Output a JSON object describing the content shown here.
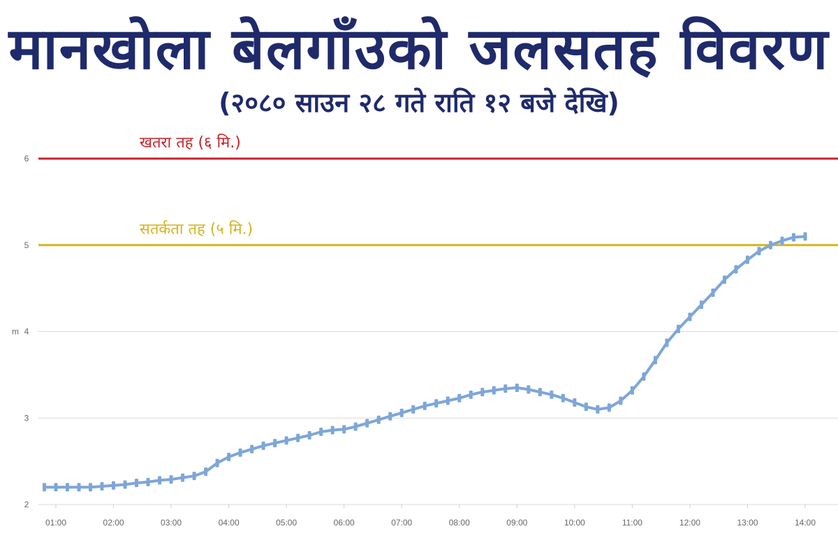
{
  "title": "मानखोला बेलगाँउको जलसतह विवरण",
  "subtitle": "(२०८० साउन २८ गते राति १२ बजे देखि)",
  "colors": {
    "title": "#1f2a6b",
    "danger": "#c8232c",
    "warning": "#d4b51f",
    "series": "#7ea6d8",
    "grid": "#d9d9d9"
  },
  "chart_data": {
    "type": "line",
    "ylabel": "m",
    "ylim": [
      2,
      6
    ],
    "yticks": [
      2,
      3,
      4,
      5,
      6
    ],
    "xticks": [
      "01:00",
      "02:00",
      "03:00",
      "04:00",
      "05:00",
      "06:00",
      "07:00",
      "08:00",
      "09:00",
      "10:00",
      "11:00",
      "12:00",
      "13:00",
      "14:00"
    ],
    "grid": true,
    "thresholds": [
      {
        "label": "खतरा तह (६ मि.)",
        "value": 6,
        "color": "#c8232c"
      },
      {
        "label": "सतर्कता तह (५ मि.)",
        "value": 5,
        "color": "#d4b51f"
      }
    ],
    "series": [
      {
        "x": [
          0.8,
          1.0,
          1.2,
          1.4,
          1.6,
          1.8,
          2.0,
          2.2,
          2.4,
          2.6,
          2.8,
          3.0,
          3.2,
          3.4,
          3.6,
          3.8,
          4.0,
          4.2,
          4.4,
          4.6,
          4.8,
          5.0,
          5.2,
          5.4,
          5.6,
          5.8,
          6.0,
          6.2,
          6.4,
          6.6,
          6.8,
          7.0,
          7.2,
          7.4,
          7.6,
          7.8,
          8.0,
          8.2,
          8.4,
          8.6,
          8.8,
          9.0,
          9.2,
          9.4,
          9.6,
          9.8,
          10.0,
          10.2,
          10.4,
          10.6,
          10.8,
          11.0,
          11.2,
          11.4,
          11.6,
          11.8,
          12.0,
          12.2,
          12.4,
          12.6,
          12.8,
          13.0,
          13.2,
          13.4,
          13.6,
          13.8,
          14.0
        ],
        "values": [
          2.2,
          2.2,
          2.2,
          2.2,
          2.2,
          2.21,
          2.22,
          2.23,
          2.25,
          2.26,
          2.28,
          2.29,
          2.31,
          2.33,
          2.38,
          2.48,
          2.55,
          2.6,
          2.64,
          2.68,
          2.71,
          2.74,
          2.77,
          2.8,
          2.84,
          2.86,
          2.87,
          2.9,
          2.94,
          2.98,
          3.02,
          3.06,
          3.1,
          3.14,
          3.17,
          3.2,
          3.23,
          3.27,
          3.3,
          3.32,
          3.34,
          3.35,
          3.33,
          3.3,
          3.27,
          3.23,
          3.18,
          3.13,
          3.1,
          3.12,
          3.2,
          3.32,
          3.48,
          3.67,
          3.87,
          4.03,
          4.17,
          4.31,
          4.45,
          4.6,
          4.72,
          4.83,
          4.93,
          5.0,
          5.05,
          5.09,
          5.1
        ]
      }
    ]
  }
}
